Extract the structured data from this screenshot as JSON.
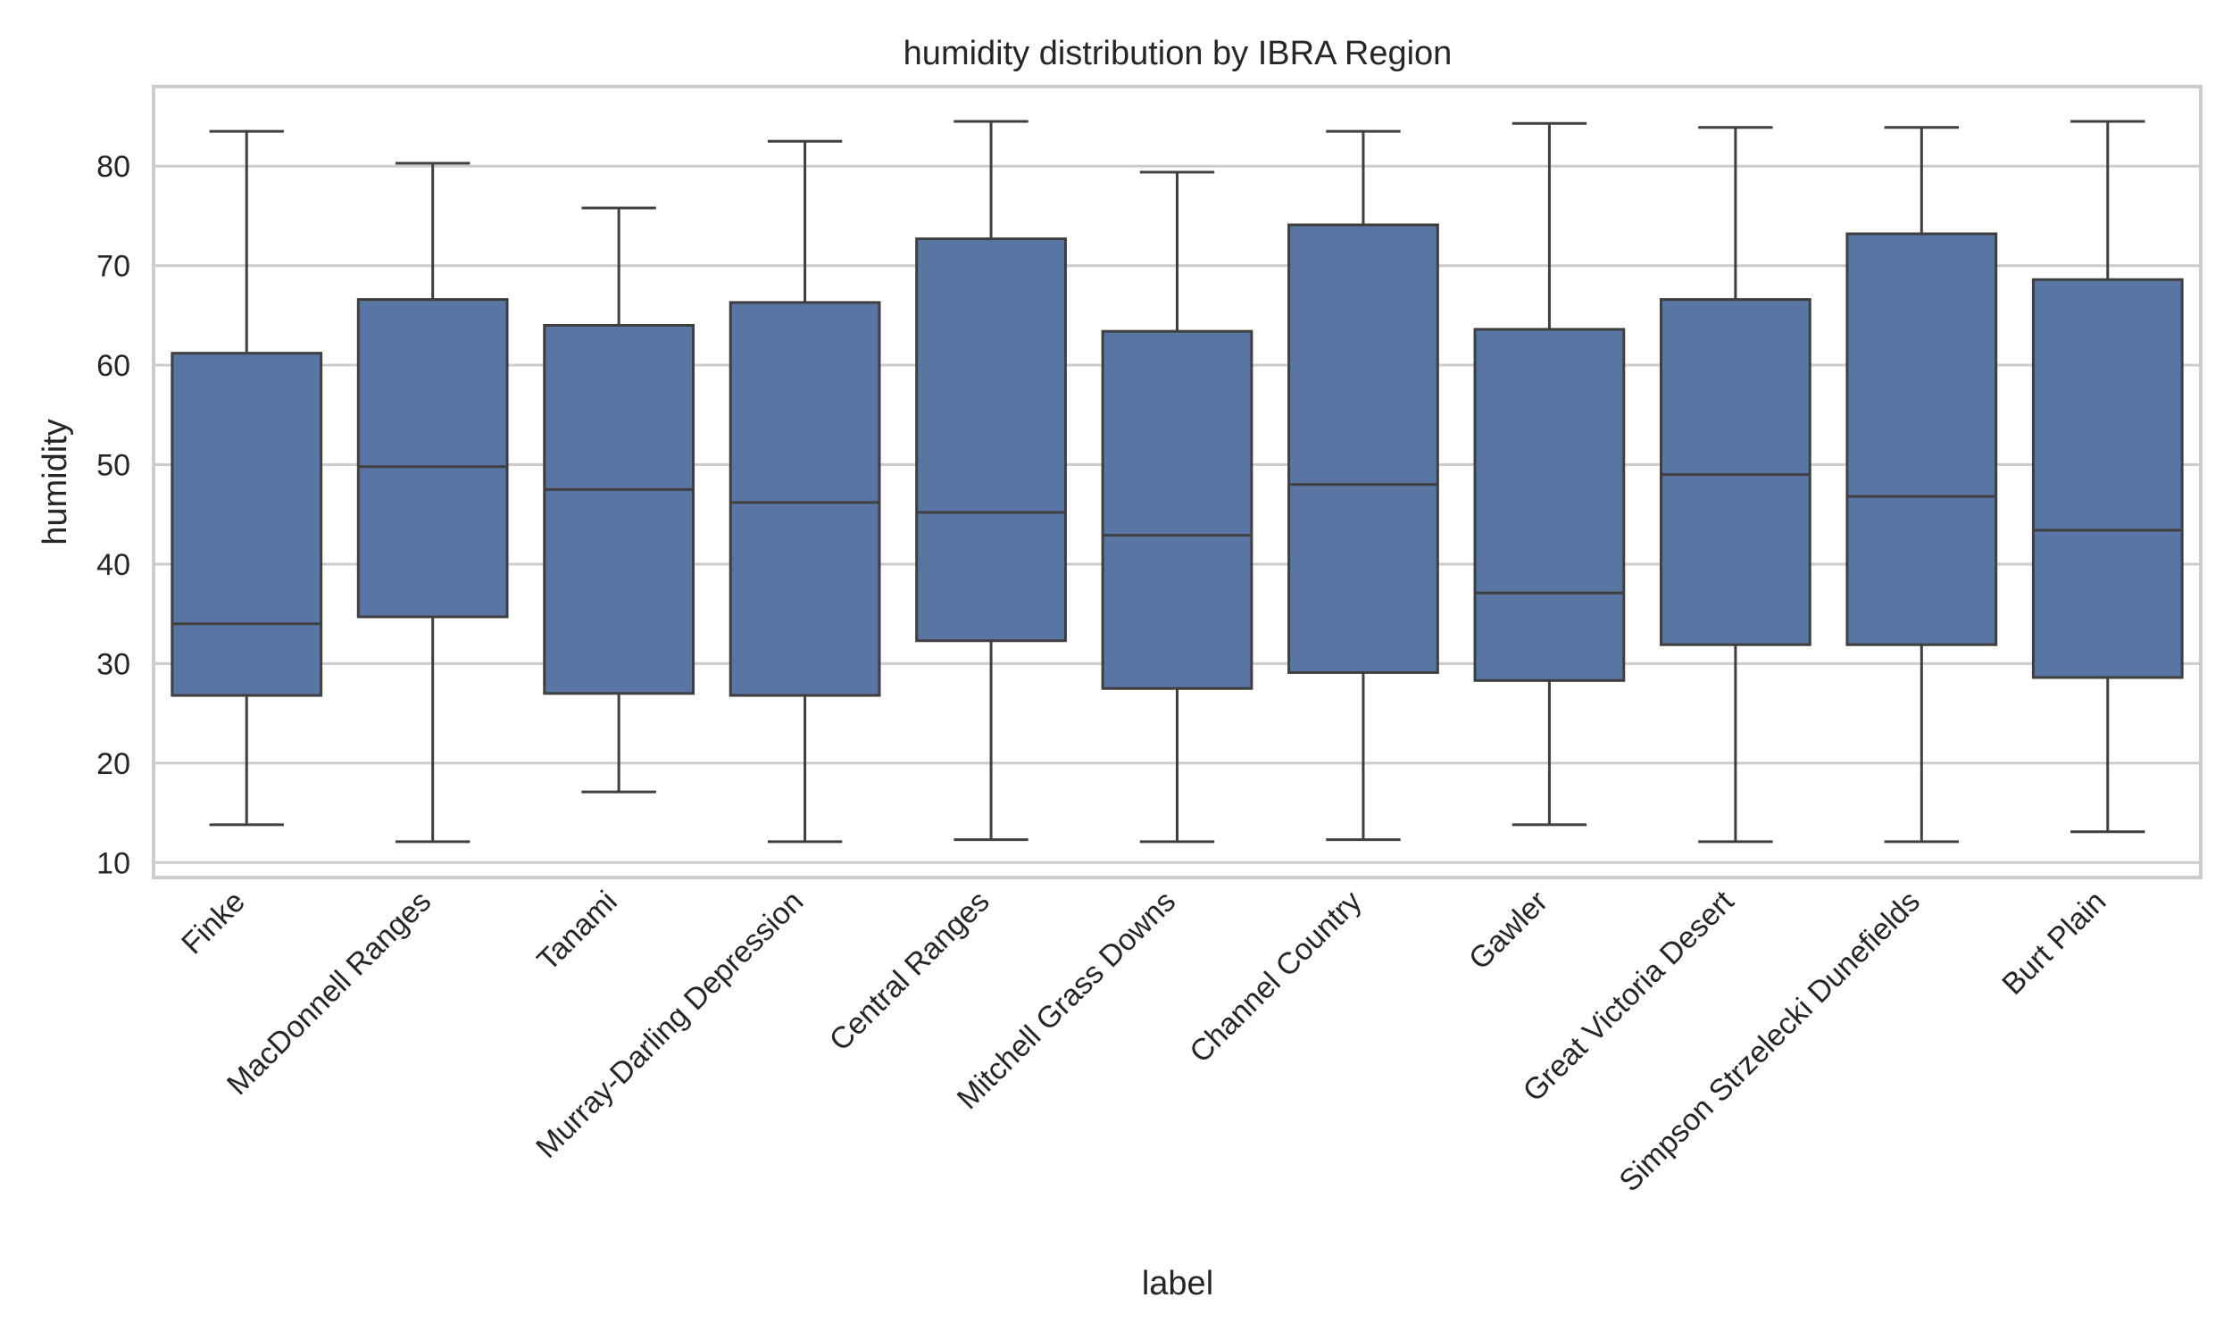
{
  "chart_data": {
    "type": "box",
    "title": "humidity distribution by IBRA Region",
    "xlabel": "label",
    "ylabel": "humidity",
    "ylim": [
      8.5,
      88
    ],
    "yticks": [
      10,
      20,
      30,
      40,
      50,
      60,
      70,
      80
    ],
    "grid": true,
    "box_color": "#5875a4",
    "line_color": "#3f3f3f",
    "grid_color": "#cccccc",
    "categories": [
      "Finke",
      "MacDonnell Ranges",
      "Tanami",
      "Murray-Darling Depression",
      "Central Ranges",
      "Mitchell Grass Downs",
      "Channel Country",
      "Gawler",
      "Great Victoria Desert",
      "Simpson Strzelecki Dunefields",
      "Burt Plain"
    ],
    "boxes": [
      {
        "min": 13.8,
        "q1": 26.8,
        "median": 34.0,
        "q3": 61.2,
        "max": 83.5
      },
      {
        "min": 12.1,
        "q1": 34.7,
        "median": 49.8,
        "q3": 66.6,
        "max": 80.3
      },
      {
        "min": 17.1,
        "q1": 27.0,
        "median": 47.5,
        "q3": 64.0,
        "max": 75.8
      },
      {
        "min": 12.1,
        "q1": 26.8,
        "median": 46.2,
        "q3": 66.3,
        "max": 82.5
      },
      {
        "min": 12.3,
        "q1": 32.3,
        "median": 45.2,
        "q3": 72.7,
        "max": 84.5
      },
      {
        "min": 12.1,
        "q1": 27.5,
        "median": 42.9,
        "q3": 63.4,
        "max": 79.4
      },
      {
        "min": 12.3,
        "q1": 29.1,
        "median": 48.0,
        "q3": 74.1,
        "max": 83.5
      },
      {
        "min": 13.8,
        "q1": 28.3,
        "median": 37.1,
        "q3": 63.6,
        "max": 84.3
      },
      {
        "min": 12.1,
        "q1": 31.9,
        "median": 49.0,
        "q3": 66.6,
        "max": 83.9
      },
      {
        "min": 12.1,
        "q1": 31.9,
        "median": 46.8,
        "q3": 73.2,
        "max": 83.9
      },
      {
        "min": 13.1,
        "q1": 28.6,
        "median": 43.4,
        "q3": 68.6,
        "max": 84.5
      }
    ]
  }
}
